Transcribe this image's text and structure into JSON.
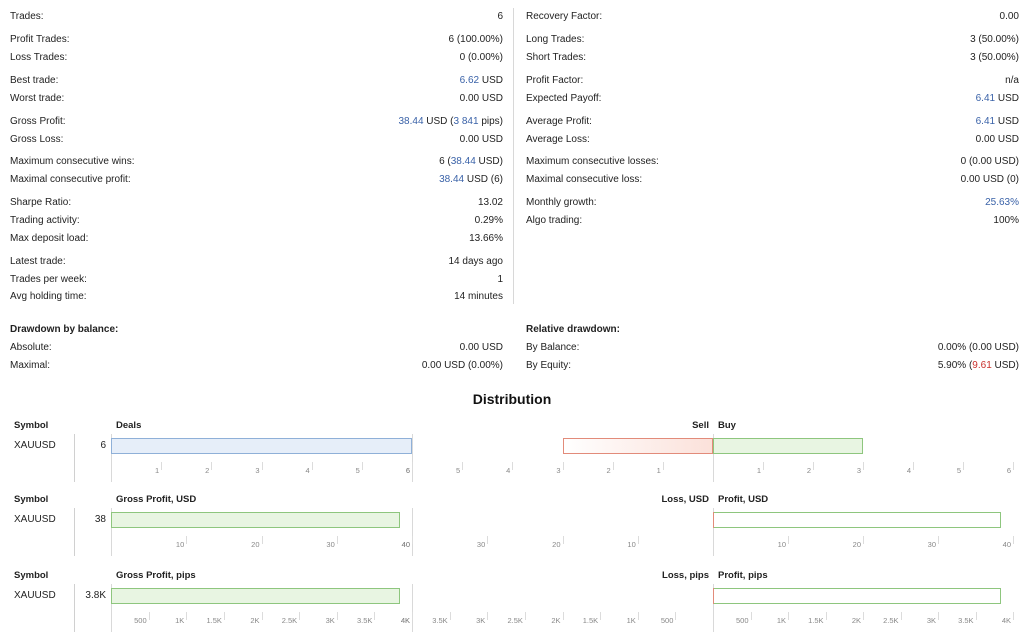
{
  "left": [
    {
      "label": "Trades:",
      "value": "6"
    },
    {
      "label": "Profit Trades:",
      "value": "6 (100.00%)"
    },
    {
      "label": "Loss Trades:",
      "value": "0 (0.00%)"
    },
    {
      "label": "Best trade:",
      "value_blue": "6.62",
      "value": " USD"
    },
    {
      "label": "Worst trade:",
      "value": "0.00 USD"
    },
    {
      "label": "Gross Profit:",
      "value_blue": "38.44",
      "value": " USD (",
      "value_blue2": "3 841",
      "value_end": " pips)"
    },
    {
      "label": "Gross Loss:",
      "value": "0.00 USD"
    },
    {
      "label": "Maximum consecutive wins:",
      "value": "6 (",
      "value_blue2": "38.44",
      "value_end": " USD)"
    },
    {
      "label": "Maximal consecutive profit:",
      "value_blue": "38.44",
      "value": " USD (6)"
    },
    {
      "label": "Sharpe Ratio:",
      "value": "13.02"
    },
    {
      "label": "Trading activity:",
      "value": "0.29%"
    },
    {
      "label": "Max deposit load:",
      "value": "13.66%"
    },
    {
      "label": "Latest trade:",
      "value": "14 days ago"
    },
    {
      "label": "Trades per week:",
      "value": "1"
    },
    {
      "label": "Avg holding time:",
      "value": "14 minutes"
    },
    {
      "label": "Drawdown by balance:",
      "value": "",
      "bold": true
    },
    {
      "label": "Absolute:",
      "value": "0.00 USD"
    },
    {
      "label": "Maximal:",
      "value": "0.00 USD (0.00%)"
    }
  ],
  "right": [
    {
      "label": "Recovery Factor:",
      "value": "0.00"
    },
    {
      "label": "Long Trades:",
      "value": "3 (50.00%)"
    },
    {
      "label": "Short Trades:",
      "value": "3 (50.00%)"
    },
    {
      "label": "Profit Factor:",
      "value": "n/a"
    },
    {
      "label": "Expected Payoff:",
      "value_blue": "6.41",
      "value": " USD"
    },
    {
      "label": "Average Profit:",
      "value_blue": "6.41",
      "value": " USD"
    },
    {
      "label": "Average Loss:",
      "value": "0.00 USD"
    },
    {
      "label": "Maximum consecutive losses:",
      "value": "0 (0.00 USD)"
    },
    {
      "label": "Maximal consecutive loss:",
      "value": "0.00 USD (0)"
    },
    {
      "label": "Monthly growth:",
      "value_blue": "25.63%",
      "value": ""
    },
    {
      "label": "Algo trading:",
      "value": "100%"
    },
    {
      "label": "Relative drawdown:",
      "value": "",
      "bold": true
    },
    {
      "label": "By Balance:",
      "value": "0.00% (0.00 USD)"
    },
    {
      "label": "By Equity:",
      "value": "5.90% (",
      "value_red": "9.61",
      "value_end": " USD)"
    }
  ],
  "distribution": {
    "title": "Distribution",
    "sections": [
      {
        "symbol_header": "Symbol",
        "symbol": "XAUUSD",
        "count": "6",
        "left_header": "Deals",
        "mid_left_header": "Sell",
        "mid_right_header": "Buy",
        "left_value": 6,
        "left_max": 6,
        "sell_value": 3,
        "sell_max": 3,
        "buy_value": 3,
        "buy_max": 6,
        "left_ticks": [
          "1",
          "2",
          "3",
          "4",
          "5",
          "6"
        ],
        "sell_ticks": [
          "6",
          "5",
          "4",
          "3",
          "2",
          "1"
        ],
        "buy_ticks": [
          "1",
          "2",
          "3",
          "4",
          "5",
          "6"
        ]
      },
      {
        "symbol_header": "Symbol",
        "symbol": "XAUUSD",
        "count": "38",
        "left_header": "Gross Profit, USD",
        "mid_left_header": "Loss, USD",
        "mid_right_header": "Profit, USD",
        "left_value": 38.44,
        "left_max": 40,
        "sell_value": 0,
        "sell_max": 40,
        "buy_value": 38.44,
        "buy_max": 40,
        "left_ticks": [
          "10",
          "20",
          "30",
          "40"
        ],
        "sell_ticks": [
          "40",
          "30",
          "20",
          "10"
        ],
        "buy_ticks": [
          "10",
          "20",
          "30",
          "40"
        ]
      },
      {
        "symbol_header": "Symbol",
        "symbol": "XAUUSD",
        "count": "3.8K",
        "left_header": "Gross Profit, pips",
        "mid_left_header": "Loss, pips",
        "mid_right_header": "Profit, pips",
        "left_value": 3841,
        "left_max": 4000,
        "sell_value": 0,
        "sell_max": 4000,
        "buy_value": 3841,
        "buy_max": 4000,
        "left_ticks": [
          "500",
          "1K",
          "1.5K",
          "2K",
          "2.5K",
          "3K",
          "3.5K",
          "4K"
        ],
        "sell_ticks": [
          "4K",
          "3.5K",
          "3K",
          "2.5K",
          "2K",
          "1.5K",
          "1K",
          "500"
        ],
        "buy_ticks": [
          "500",
          "1K",
          "1.5K",
          "2K",
          "2.5K",
          "3K",
          "3.5K",
          "4K"
        ]
      }
    ]
  },
  "colors": {
    "blue": "#3a62a8",
    "red": "#c9302c",
    "green": "#8ec67e"
  }
}
